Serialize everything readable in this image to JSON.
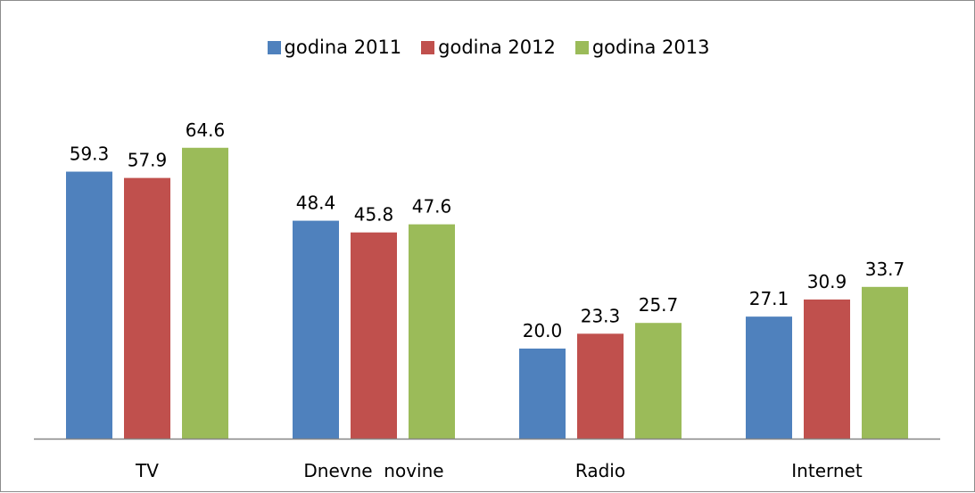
{
  "chart_data": {
    "type": "bar",
    "title": "",
    "xlabel": "",
    "ylabel": "",
    "categories": [
      "TV",
      "Dnevne  novine",
      "Radio",
      "Internet"
    ],
    "series": [
      {
        "name": "godina 2011",
        "color": "#4f81bd",
        "values": [
          59.3,
          48.4,
          20.0,
          27.1
        ]
      },
      {
        "name": "godina 2012",
        "color": "#c0504d",
        "values": [
          57.9,
          45.8,
          23.3,
          30.9
        ]
      },
      {
        "name": "godina 2013",
        "color": "#9bbb59",
        "values": [
          64.6,
          47.6,
          25.7,
          33.7
        ]
      }
    ],
    "value_labels": [
      [
        "59.3",
        "48.4",
        "20.0",
        "27.1"
      ],
      [
        "57.9",
        "45.8",
        "23.3",
        "30.9"
      ],
      [
        "64.6",
        "47.6",
        "25.7",
        "33.7"
      ]
    ],
    "ylim": [
      0,
      70
    ],
    "grid": false,
    "legend_position": "top-center",
    "axis_color": "#868686"
  }
}
